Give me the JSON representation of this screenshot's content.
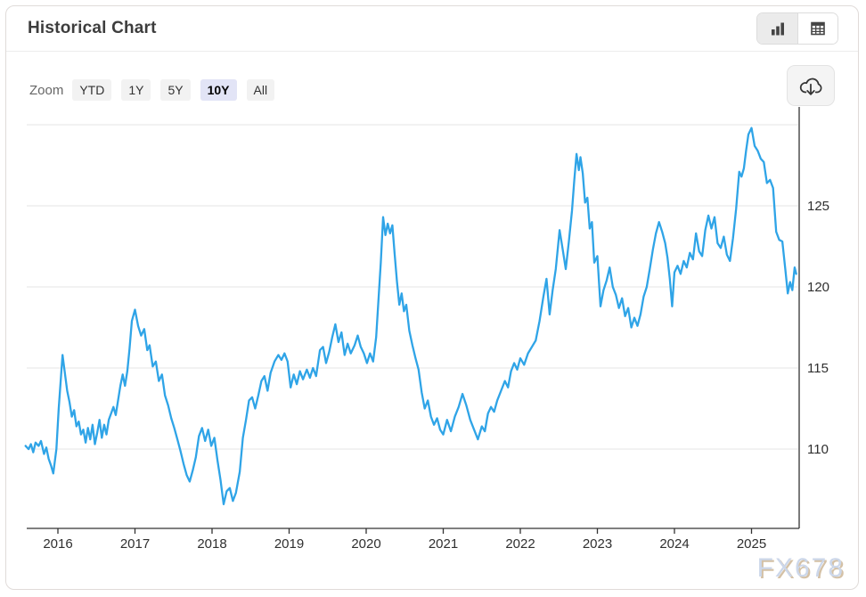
{
  "header": {
    "title": "Historical Chart"
  },
  "toolbar": {
    "chart_view": {
      "icon": "bar-chart-icon",
      "active": true
    },
    "table_view": {
      "icon": "table-icon",
      "active": false
    }
  },
  "zoom_controls": {
    "label": "Zoom",
    "options": [
      "YTD",
      "1Y",
      "5Y",
      "10Y",
      "All"
    ],
    "selected": "10Y"
  },
  "download": {
    "icon": "cloud-download-icon"
  },
  "watermark": "FX678",
  "colors": {
    "line": "#2fa4e7",
    "grid": "#e6e6e6",
    "axis": "#333333",
    "tick_label": "#2f2f2f",
    "selected_zoom_bg": "#e2e4f6"
  },
  "chart_data": {
    "type": "line",
    "title": "Historical Chart",
    "color": "#2fa4e7",
    "grid": true,
    "legend": "none",
    "x_tick_labels": [
      2016,
      2017,
      2018,
      2019,
      2020,
      2021,
      2022,
      2023,
      2024,
      2025
    ],
    "y_tick_labels": [
      110,
      115,
      120,
      125
    ],
    "y_gridlines": [
      110,
      115,
      120,
      125,
      130
    ],
    "xlim": [
      2015.55,
      2025.62
    ],
    "ylim": [
      105,
      131.2
    ],
    "points": [
      [
        2015.58,
        110.2
      ],
      [
        2015.62,
        110.0
      ],
      [
        2015.65,
        110.3
      ],
      [
        2015.68,
        109.8
      ],
      [
        2015.71,
        110.4
      ],
      [
        2015.75,
        110.2
      ],
      [
        2015.78,
        110.5
      ],
      [
        2015.82,
        109.7
      ],
      [
        2015.85,
        110.1
      ],
      [
        2015.88,
        109.4
      ],
      [
        2015.91,
        109.0
      ],
      [
        2015.94,
        108.5
      ],
      [
        2015.98,
        110.0
      ],
      [
        2016.01,
        112.5
      ],
      [
        2016.04,
        114.5
      ],
      [
        2016.06,
        115.8
      ],
      [
        2016.09,
        114.7
      ],
      [
        2016.12,
        113.6
      ],
      [
        2016.15,
        112.9
      ],
      [
        2016.18,
        112.0
      ],
      [
        2016.21,
        112.4
      ],
      [
        2016.24,
        111.4
      ],
      [
        2016.27,
        111.7
      ],
      [
        2016.3,
        110.9
      ],
      [
        2016.33,
        111.2
      ],
      [
        2016.36,
        110.4
      ],
      [
        2016.39,
        111.3
      ],
      [
        2016.42,
        110.6
      ],
      [
        2016.45,
        111.5
      ],
      [
        2016.48,
        110.3
      ],
      [
        2016.51,
        111.0
      ],
      [
        2016.54,
        111.8
      ],
      [
        2016.57,
        110.7
      ],
      [
        2016.6,
        111.5
      ],
      [
        2016.63,
        110.9
      ],
      [
        2016.66,
        111.8
      ],
      [
        2016.69,
        112.2
      ],
      [
        2016.72,
        112.6
      ],
      [
        2016.75,
        112.1
      ],
      [
        2016.78,
        113.0
      ],
      [
        2016.81,
        113.9
      ],
      [
        2016.84,
        114.6
      ],
      [
        2016.87,
        113.9
      ],
      [
        2016.9,
        114.8
      ],
      [
        2016.93,
        116.2
      ],
      [
        2016.96,
        117.9
      ],
      [
        2017.0,
        118.6
      ],
      [
        2017.04,
        117.6
      ],
      [
        2017.08,
        117.0
      ],
      [
        2017.12,
        117.4
      ],
      [
        2017.16,
        116.1
      ],
      [
        2017.19,
        116.4
      ],
      [
        2017.23,
        115.1
      ],
      [
        2017.27,
        115.4
      ],
      [
        2017.31,
        114.2
      ],
      [
        2017.35,
        114.6
      ],
      [
        2017.39,
        113.3
      ],
      [
        2017.43,
        112.7
      ],
      [
        2017.47,
        111.9
      ],
      [
        2017.51,
        111.3
      ],
      [
        2017.55,
        110.6
      ],
      [
        2017.59,
        109.9
      ],
      [
        2017.63,
        109.1
      ],
      [
        2017.67,
        108.4
      ],
      [
        2017.71,
        108.0
      ],
      [
        2017.75,
        108.7
      ],
      [
        2017.79,
        109.5
      ],
      [
        2017.83,
        110.8
      ],
      [
        2017.87,
        111.3
      ],
      [
        2017.91,
        110.5
      ],
      [
        2017.95,
        111.2
      ],
      [
        2017.99,
        110.2
      ],
      [
        2018.03,
        110.7
      ],
      [
        2018.07,
        109.3
      ],
      [
        2018.11,
        108.1
      ],
      [
        2018.15,
        106.6
      ],
      [
        2018.19,
        107.4
      ],
      [
        2018.23,
        107.6
      ],
      [
        2018.27,
        106.8
      ],
      [
        2018.31,
        107.3
      ],
      [
        2018.36,
        108.6
      ],
      [
        2018.4,
        110.7
      ],
      [
        2018.44,
        111.8
      ],
      [
        2018.48,
        113.0
      ],
      [
        2018.52,
        113.2
      ],
      [
        2018.56,
        112.5
      ],
      [
        2018.6,
        113.3
      ],
      [
        2018.64,
        114.2
      ],
      [
        2018.68,
        114.5
      ],
      [
        2018.72,
        113.6
      ],
      [
        2018.76,
        114.7
      ],
      [
        2018.81,
        115.4
      ],
      [
        2018.86,
        115.8
      ],
      [
        2018.9,
        115.5
      ],
      [
        2018.94,
        115.9
      ],
      [
        2018.98,
        115.4
      ],
      [
        2019.02,
        113.8
      ],
      [
        2019.06,
        114.6
      ],
      [
        2019.1,
        114.0
      ],
      [
        2019.14,
        114.8
      ],
      [
        2019.18,
        114.3
      ],
      [
        2019.23,
        114.9
      ],
      [
        2019.27,
        114.4
      ],
      [
        2019.31,
        115.0
      ],
      [
        2019.35,
        114.5
      ],
      [
        2019.4,
        116.1
      ],
      [
        2019.44,
        116.3
      ],
      [
        2019.48,
        115.3
      ],
      [
        2019.52,
        116.0
      ],
      [
        2019.56,
        116.9
      ],
      [
        2019.6,
        117.7
      ],
      [
        2019.64,
        116.6
      ],
      [
        2019.68,
        117.2
      ],
      [
        2019.72,
        115.8
      ],
      [
        2019.76,
        116.5
      ],
      [
        2019.8,
        115.9
      ],
      [
        2019.85,
        116.4
      ],
      [
        2019.89,
        117.0
      ],
      [
        2019.93,
        116.3
      ],
      [
        2019.97,
        115.9
      ],
      [
        2020.01,
        115.3
      ],
      [
        2020.05,
        115.9
      ],
      [
        2020.09,
        115.4
      ],
      [
        2020.13,
        116.9
      ],
      [
        2020.16,
        119.2
      ],
      [
        2020.19,
        121.5
      ],
      [
        2020.22,
        124.3
      ],
      [
        2020.25,
        123.2
      ],
      [
        2020.28,
        123.9
      ],
      [
        2020.31,
        123.3
      ],
      [
        2020.34,
        123.8
      ],
      [
        2020.37,
        122.0
      ],
      [
        2020.4,
        120.3
      ],
      [
        2020.43,
        118.9
      ],
      [
        2020.46,
        119.6
      ],
      [
        2020.49,
        118.5
      ],
      [
        2020.52,
        118.9
      ],
      [
        2020.56,
        117.3
      ],
      [
        2020.6,
        116.4
      ],
      [
        2020.64,
        115.6
      ],
      [
        2020.68,
        114.9
      ],
      [
        2020.72,
        113.5
      ],
      [
        2020.76,
        112.5
      ],
      [
        2020.8,
        113.0
      ],
      [
        2020.84,
        112.0
      ],
      [
        2020.88,
        111.5
      ],
      [
        2020.92,
        111.9
      ],
      [
        2020.96,
        111.2
      ],
      [
        2021.0,
        110.9
      ],
      [
        2021.05,
        111.8
      ],
      [
        2021.1,
        111.1
      ],
      [
        2021.15,
        112.0
      ],
      [
        2021.2,
        112.6
      ],
      [
        2021.25,
        113.4
      ],
      [
        2021.3,
        112.7
      ],
      [
        2021.35,
        111.8
      ],
      [
        2021.4,
        111.2
      ],
      [
        2021.45,
        110.6
      ],
      [
        2021.5,
        111.4
      ],
      [
        2021.54,
        111.1
      ],
      [
        2021.58,
        112.2
      ],
      [
        2021.62,
        112.6
      ],
      [
        2021.66,
        112.3
      ],
      [
        2021.7,
        113.0
      ],
      [
        2021.75,
        113.6
      ],
      [
        2021.8,
        114.2
      ],
      [
        2021.84,
        113.8
      ],
      [
        2021.88,
        114.8
      ],
      [
        2021.92,
        115.3
      ],
      [
        2021.96,
        114.9
      ],
      [
        2022.0,
        115.6
      ],
      [
        2022.05,
        115.2
      ],
      [
        2022.1,
        115.9
      ],
      [
        2022.15,
        116.3
      ],
      [
        2022.2,
        116.7
      ],
      [
        2022.25,
        117.9
      ],
      [
        2022.3,
        119.4
      ],
      [
        2022.34,
        120.5
      ],
      [
        2022.38,
        118.3
      ],
      [
        2022.42,
        119.8
      ],
      [
        2022.46,
        121.1
      ],
      [
        2022.51,
        123.5
      ],
      [
        2022.55,
        122.3
      ],
      [
        2022.59,
        121.1
      ],
      [
        2022.63,
        122.8
      ],
      [
        2022.67,
        124.7
      ],
      [
        2022.7,
        126.6
      ],
      [
        2022.73,
        128.2
      ],
      [
        2022.76,
        127.2
      ],
      [
        2022.78,
        128.0
      ],
      [
        2022.81,
        127.0
      ],
      [
        2022.84,
        125.2
      ],
      [
        2022.87,
        125.5
      ],
      [
        2022.9,
        123.6
      ],
      [
        2022.93,
        124.0
      ],
      [
        2022.96,
        121.5
      ],
      [
        2023.0,
        121.9
      ],
      [
        2023.04,
        118.8
      ],
      [
        2023.08,
        119.8
      ],
      [
        2023.12,
        120.4
      ],
      [
        2023.16,
        121.2
      ],
      [
        2023.2,
        120.0
      ],
      [
        2023.24,
        119.5
      ],
      [
        2023.28,
        118.7
      ],
      [
        2023.32,
        119.3
      ],
      [
        2023.36,
        118.2
      ],
      [
        2023.4,
        118.7
      ],
      [
        2023.44,
        117.5
      ],
      [
        2023.48,
        118.1
      ],
      [
        2023.52,
        117.6
      ],
      [
        2023.56,
        118.3
      ],
      [
        2023.6,
        119.4
      ],
      [
        2023.64,
        120.0
      ],
      [
        2023.68,
        121.1
      ],
      [
        2023.72,
        122.3
      ],
      [
        2023.76,
        123.3
      ],
      [
        2023.8,
        124.0
      ],
      [
        2023.84,
        123.4
      ],
      [
        2023.88,
        122.7
      ],
      [
        2023.91,
        121.8
      ],
      [
        2023.94,
        120.5
      ],
      [
        2023.97,
        118.8
      ],
      [
        2024.0,
        120.9
      ],
      [
        2024.04,
        121.3
      ],
      [
        2024.08,
        120.8
      ],
      [
        2024.12,
        121.6
      ],
      [
        2024.16,
        121.2
      ],
      [
        2024.2,
        122.1
      ],
      [
        2024.24,
        121.7
      ],
      [
        2024.28,
        123.3
      ],
      [
        2024.32,
        122.2
      ],
      [
        2024.36,
        121.9
      ],
      [
        2024.4,
        123.5
      ],
      [
        2024.44,
        124.4
      ],
      [
        2024.48,
        123.6
      ],
      [
        2024.52,
        124.3
      ],
      [
        2024.56,
        122.7
      ],
      [
        2024.6,
        122.4
      ],
      [
        2024.64,
        123.1
      ],
      [
        2024.68,
        122.0
      ],
      [
        2024.72,
        121.6
      ],
      [
        2024.76,
        123.0
      ],
      [
        2024.8,
        124.8
      ],
      [
        2024.84,
        127.1
      ],
      [
        2024.87,
        126.8
      ],
      [
        2024.9,
        127.3
      ],
      [
        2024.93,
        128.4
      ],
      [
        2024.96,
        129.4
      ],
      [
        2025.0,
        129.8
      ],
      [
        2025.04,
        128.7
      ],
      [
        2025.08,
        128.4
      ],
      [
        2025.12,
        127.9
      ],
      [
        2025.16,
        127.7
      ],
      [
        2025.2,
        126.4
      ],
      [
        2025.24,
        126.6
      ],
      [
        2025.28,
        126.1
      ],
      [
        2025.32,
        123.4
      ],
      [
        2025.36,
        122.9
      ],
      [
        2025.4,
        122.8
      ],
      [
        2025.44,
        121.0
      ],
      [
        2025.47,
        119.6
      ],
      [
        2025.5,
        120.3
      ],
      [
        2025.53,
        119.8
      ],
      [
        2025.56,
        121.2
      ],
      [
        2025.58,
        120.8
      ]
    ]
  }
}
